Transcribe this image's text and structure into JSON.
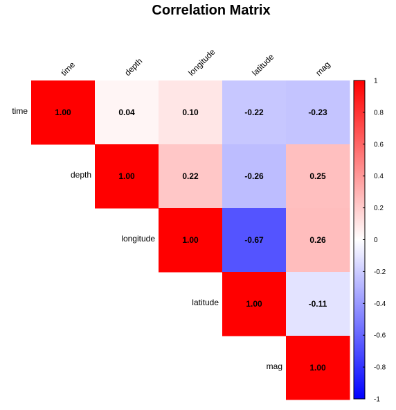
{
  "chart_data": {
    "type": "heatmap",
    "title": "Correlation Matrix",
    "variables": [
      "time",
      "depth",
      "longitude",
      "latitude",
      "mag"
    ],
    "matrix": [
      [
        1.0,
        0.04,
        0.1,
        -0.22,
        -0.23
      ],
      [
        0.04,
        1.0,
        0.22,
        -0.26,
        0.25
      ],
      [
        0.1,
        0.22,
        1.0,
        -0.67,
        0.26
      ],
      [
        -0.22,
        -0.26,
        -0.67,
        1.0,
        -0.11
      ],
      [
        -0.23,
        0.25,
        0.26,
        -0.11,
        1.0
      ]
    ],
    "display": "upper-triangle",
    "colorbar": {
      "range": [
        -1,
        1
      ],
      "ticks": [
        "-1",
        "-0.8",
        "-0.6",
        "-0.4",
        "-0.2",
        "0",
        "0.2",
        "0.4",
        "0.6",
        "0.8",
        "1"
      ],
      "colors": {
        "low": "#0000FF",
        "mid": "#FFFFFF",
        "high": "#FF0000"
      }
    }
  }
}
